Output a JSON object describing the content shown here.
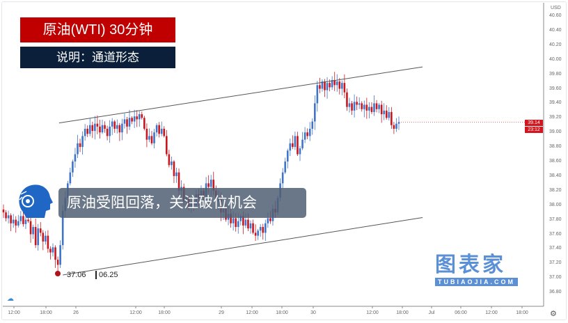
{
  "header": {
    "title": "原油(WTI) 30分钟",
    "subtitle": "说明：通道形态"
  },
  "banner": {
    "text": "原油受阻回落，关注破位机会"
  },
  "low_marker": {
    "price": "37.06",
    "date": "06.25"
  },
  "watermark": {
    "cn": "图表家",
    "en": "TUBIAOJIA.COM"
  },
  "colors": {
    "up": "#3f74c9",
    "down": "#c8161e",
    "title_bg": "#c00000",
    "subtitle_bg": "#0c1f3a",
    "price_tag": "#d2161e"
  },
  "icons": {
    "logo": "robot-head-icon",
    "settings": "gear-icon",
    "brand": "cloud-icon"
  },
  "chart_data": {
    "type": "candlestick",
    "currency": "USD",
    "yticks": [
      "40.60",
      "40.40",
      "40.20",
      "40.00",
      "39.80",
      "39.60",
      "39.40",
      "39.20",
      "39.00",
      "38.80",
      "38.60",
      "38.40",
      "38.20",
      "38.00",
      "37.80",
      "37.60",
      "37.40",
      "37.20",
      "37.00",
      "36.80"
    ],
    "ylim": [
      36.8,
      40.6
    ],
    "xticks": [
      "12:00",
      "18:00",
      "26",
      "12:00",
      "18:00",
      "29",
      "12:00",
      "18:00",
      "30",
      "12:00",
      "18:00",
      "Jul",
      "06:00",
      "12:00",
      "18:00"
    ],
    "last_price": "39.14",
    "countdown": "23:12",
    "closes": [
      37.9,
      37.82,
      37.86,
      37.75,
      37.8,
      37.72,
      37.78,
      37.85,
      37.74,
      37.8,
      37.78,
      37.6,
      37.7,
      37.45,
      37.68,
      37.62,
      37.5,
      37.58,
      37.4,
      37.35,
      37.42,
      37.25,
      37.18,
      37.45,
      37.92,
      38.1,
      38.3,
      38.45,
      38.6,
      38.7,
      38.85,
      38.8,
      38.95,
      39.05,
      38.98,
      39.1,
      39.02,
      39.12,
      39.08,
      39.0,
      39.1,
      39.05,
      38.95,
      39.08,
      39.15,
      39.05,
      39.1,
      39.0,
      39.12,
      39.18,
      39.08,
      39.2,
      39.15,
      39.22,
      39.18,
      39.25,
      39.2,
      39.05,
      38.9,
      38.95,
      38.85,
      39.0,
      39.1,
      38.98,
      39.05,
      38.95,
      38.7,
      38.55,
      38.6,
      38.4,
      38.45,
      38.2,
      38.25,
      38.05,
      38.1,
      37.95,
      38.05,
      38.0,
      38.15,
      38.1,
      38.2,
      38.12,
      38.3,
      38.25,
      38.35,
      38.2,
      38.05,
      38.1,
      37.9,
      37.95,
      37.8,
      37.88,
      37.75,
      37.82,
      37.7,
      37.78,
      37.85,
      37.72,
      37.8,
      37.68,
      37.75,
      37.62,
      37.58,
      37.65,
      37.7,
      37.62,
      37.75,
      37.82,
      37.78,
      37.95,
      37.9,
      38.1,
      38.3,
      38.45,
      38.6,
      38.75,
      38.85,
      38.8,
      38.95,
      38.7,
      38.78,
      38.9,
      39.0,
      38.95,
      39.05,
      39.15,
      39.4,
      39.65,
      39.6,
      39.7,
      39.58,
      39.68,
      39.62,
      39.72,
      39.65,
      39.7,
      39.6,
      39.68,
      39.55,
      39.35,
      39.4,
      39.3,
      39.42,
      39.38,
      39.4,
      39.32,
      39.38,
      39.3,
      39.35,
      39.28,
      39.4,
      39.32,
      39.38,
      39.25,
      39.3,
      39.2,
      39.28,
      39.1,
      39.05,
      39.12,
      39.14
    ],
    "channel": {
      "upper": {
        "from_candle": 22.5,
        "from_price": 39.13,
        "to_candle": 169.6,
        "to_price": 39.9
      },
      "lower": {
        "from_candle": 24,
        "from_price": 37.04,
        "to_candle": 169.6,
        "to_price": 37.83
      }
    }
  }
}
